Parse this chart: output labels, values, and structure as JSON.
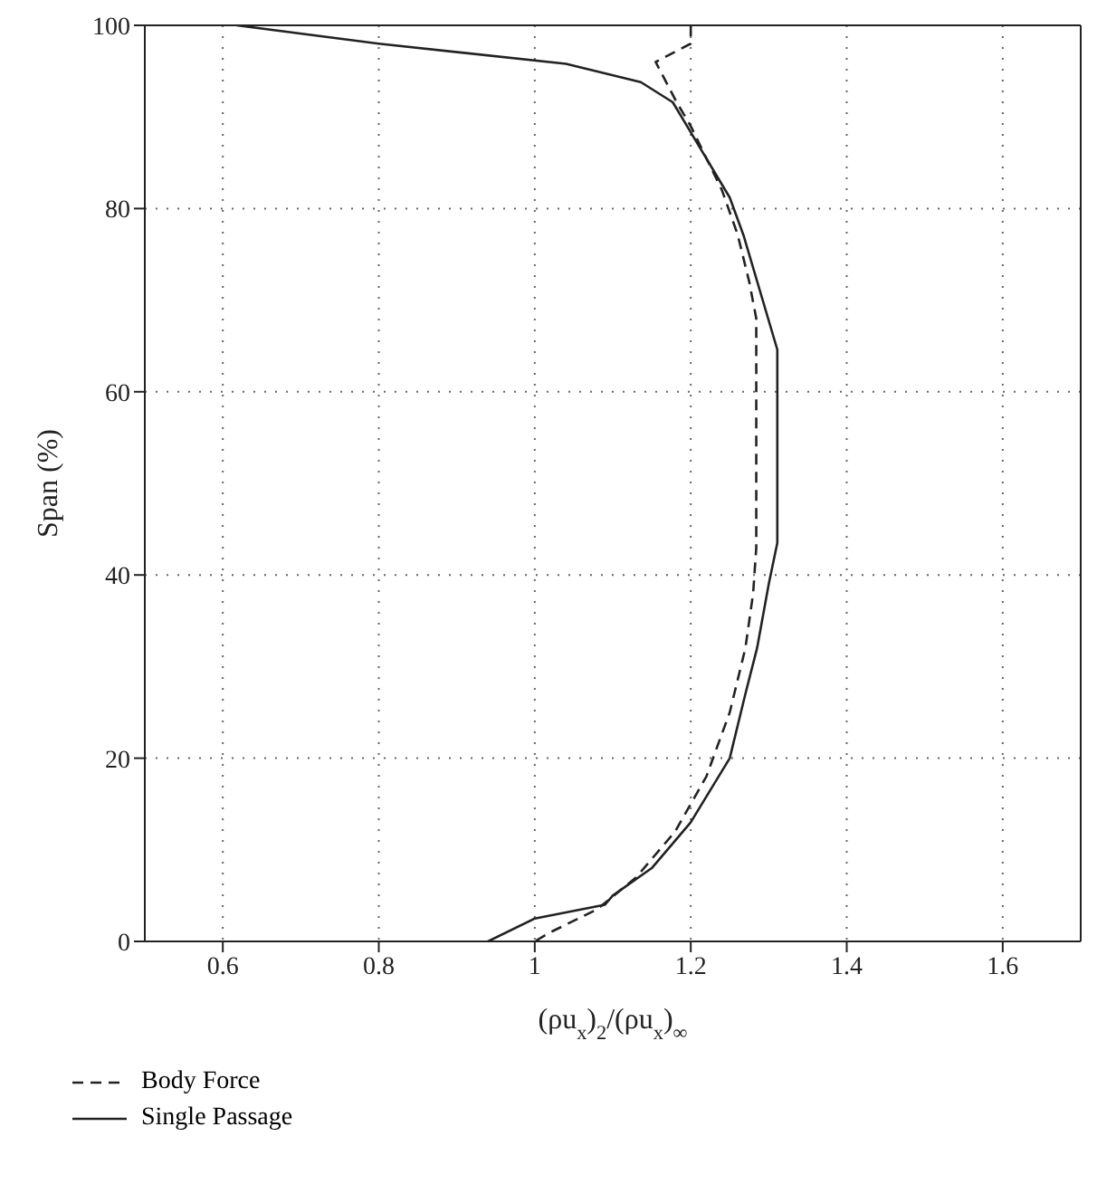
{
  "chart_data": {
    "type": "line",
    "xlabel": "(ρu$_{x}$)$_{2}$/(ρu$_{x}$)$_{∞}$",
    "ylabel": "Span (%)",
    "xlim": [
      0.5,
      1.7
    ],
    "xticks": [
      0.6,
      0.8,
      1,
      1.2,
      1.4,
      1.6
    ],
    "ylim": [
      0,
      100
    ],
    "yticks": [
      0,
      20,
      40,
      60,
      80,
      100
    ],
    "grid": true,
    "legend": "bottom left",
    "marker": "none",
    "series": [
      {
        "name": "Body Force",
        "color": "#222222",
        "line_style": "dashed",
        "x": [
          1.2,
          1.2,
          1.155,
          1.182,
          1.2,
          1.24,
          1.26,
          1.275,
          1.284,
          1.284,
          1.28,
          1.27,
          1.25,
          1.22,
          1.18,
          1.13,
          1.08,
          1.02,
          1.0
        ],
        "values": [
          100,
          98,
          96,
          91.6,
          89,
          82,
          77.2,
          72,
          68,
          43,
          38,
          32,
          25,
          18,
          12,
          7,
          3.5,
          1,
          0
        ]
      },
      {
        "name": "Single Passage",
        "color": "#222222",
        "line_style": "solid",
        "x": [
          0.618,
          0.8,
          1.04,
          1.136,
          1.177,
          1.25,
          1.268,
          1.311,
          1.311,
          1.3,
          1.285,
          1.27,
          1.25,
          1.2,
          1.15,
          1.1,
          1.09,
          1.0,
          0.94
        ],
        "values": [
          100,
          98,
          95.8,
          93.8,
          91.6,
          81.2,
          77,
          64.6,
          43.5,
          39,
          32,
          27,
          20,
          13,
          8,
          5,
          4,
          2.5,
          0
        ]
      }
    ]
  }
}
